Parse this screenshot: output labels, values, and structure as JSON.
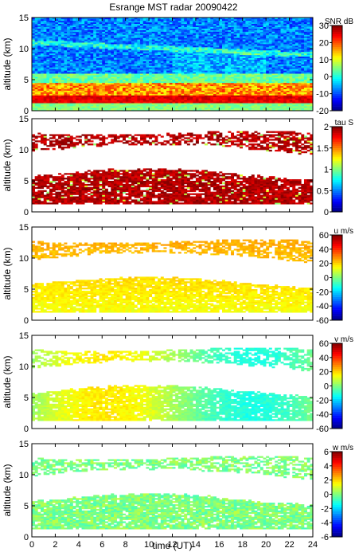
{
  "title": "Esrange MST radar 20090422",
  "xlabel": "time (UT)",
  "ylabel": "altitude (km)",
  "x_ticks": [
    0,
    2,
    4,
    6,
    8,
    10,
    12,
    14,
    16,
    18,
    20,
    22,
    24
  ],
  "y_ticks": [
    0,
    5,
    10,
    15
  ],
  "chart_data": [
    {
      "type": "heatmap",
      "quantity": "SNR",
      "colorbar_label": "SNR dB",
      "colorbar_ticks": [
        30,
        20,
        10,
        0,
        -10,
        -20
      ],
      "clim": [
        -20,
        30
      ],
      "colormap": "jet",
      "xlim": [
        0,
        24
      ],
      "ylim": [
        0,
        15
      ],
      "xlabel": "",
      "ylabel": "altitude (km)"
    },
    {
      "type": "heatmap",
      "quantity": "tau",
      "colorbar_label": "tau S",
      "colorbar_ticks": [
        2,
        1.5,
        1,
        0.5,
        0
      ],
      "clim": [
        0,
        2
      ],
      "colormap": "jet",
      "xlim": [
        0,
        24
      ],
      "ylim": [
        0,
        15
      ],
      "xlabel": "",
      "ylabel": "altitude (km)"
    },
    {
      "type": "heatmap",
      "quantity": "u",
      "colorbar_label": "u m/s",
      "colorbar_ticks": [
        60,
        40,
        20,
        0,
        -20,
        -40,
        -60
      ],
      "clim": [
        -60,
        60
      ],
      "colormap": "jet",
      "xlim": [
        0,
        24
      ],
      "ylim": [
        0,
        15
      ],
      "xlabel": "",
      "ylabel": "altitude (km)"
    },
    {
      "type": "heatmap",
      "quantity": "v",
      "colorbar_label": "v m/s",
      "colorbar_ticks": [
        60,
        40,
        20,
        0,
        -20,
        -40,
        -60
      ],
      "clim": [
        -60,
        60
      ],
      "colormap": "jet",
      "xlim": [
        0,
        24
      ],
      "ylim": [
        0,
        15
      ],
      "xlabel": "",
      "ylabel": "altitude (km)"
    },
    {
      "type": "heatmap",
      "quantity": "w",
      "colorbar_label": "w m/s",
      "colorbar_ticks": [
        6,
        4,
        2,
        0,
        -2,
        -4,
        -6
      ],
      "clim": [
        -6,
        6
      ],
      "colormap": "jet",
      "xlim": [
        0,
        24
      ],
      "ylim": [
        0,
        15
      ],
      "xlabel": "time (UT)",
      "ylabel": "altitude (km)"
    }
  ]
}
